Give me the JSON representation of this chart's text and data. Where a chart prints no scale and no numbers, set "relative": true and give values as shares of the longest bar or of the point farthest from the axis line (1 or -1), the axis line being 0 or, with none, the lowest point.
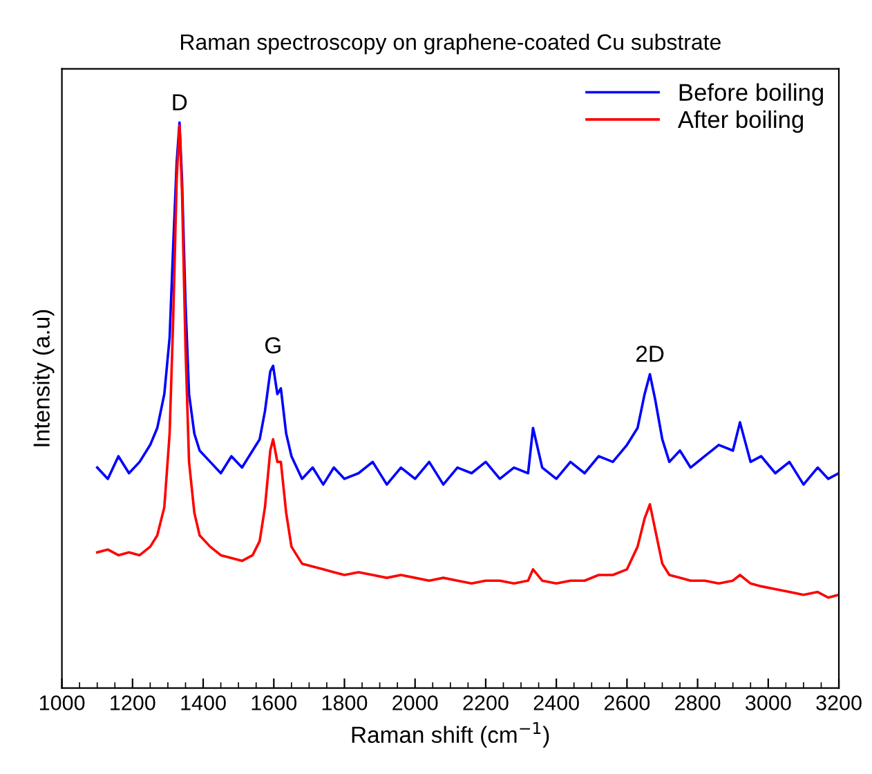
{
  "chart_data": {
    "type": "line",
    "title": "Raman spectroscopy on graphene-coated Cu substrate",
    "xlabel": "Raman shift (cm$^{−1}$)",
    "ylabel": "Intensity (a.u)",
    "relative": true,
    "x": [
      1100,
      1130,
      1160,
      1190,
      1220,
      1250,
      1270,
      1290,
      1305,
      1315,
      1325,
      1333,
      1340,
      1350,
      1360,
      1375,
      1390,
      1420,
      1450,
      1480,
      1510,
      1540,
      1560,
      1575,
      1590,
      1598,
      1610,
      1620,
      1635,
      1650,
      1680,
      1710,
      1740,
      1770,
      1800,
      1840,
      1880,
      1920,
      1960,
      2000,
      2040,
      2080,
      2120,
      2160,
      2200,
      2240,
      2280,
      2320,
      2334,
      2360,
      2400,
      2440,
      2480,
      2520,
      2560,
      2600,
      2630,
      2650,
      2665,
      2680,
      2700,
      2720,
      2750,
      2780,
      2820,
      2860,
      2900,
      2920,
      2950,
      2980,
      3020,
      3060,
      3100,
      3140,
      3170,
      3200
    ],
    "xlim": [
      1000,
      3200
    ],
    "xticks": [
      1000,
      1200,
      1400,
      1600,
      1800,
      2000,
      2200,
      2400,
      2600,
      2800,
      3000,
      3200
    ],
    "series": [
      {
        "name": "Before boiling",
        "color": "#0000ff",
        "values": [
          0.39,
          0.37,
          0.41,
          0.38,
          0.4,
          0.43,
          0.46,
          0.52,
          0.62,
          0.78,
          0.93,
          1.0,
          0.9,
          0.68,
          0.52,
          0.45,
          0.42,
          0.4,
          0.38,
          0.41,
          0.39,
          0.42,
          0.44,
          0.49,
          0.56,
          0.57,
          0.52,
          0.53,
          0.45,
          0.41,
          0.37,
          0.39,
          0.36,
          0.39,
          0.37,
          0.38,
          0.4,
          0.36,
          0.39,
          0.37,
          0.4,
          0.36,
          0.39,
          0.38,
          0.4,
          0.37,
          0.39,
          0.38,
          0.46,
          0.39,
          0.37,
          0.4,
          0.38,
          0.41,
          0.4,
          0.43,
          0.46,
          0.52,
          0.555,
          0.51,
          0.44,
          0.4,
          0.42,
          0.39,
          0.41,
          0.43,
          0.42,
          0.47,
          0.4,
          0.41,
          0.38,
          0.4,
          0.36,
          0.39,
          0.37,
          0.38
        ]
      },
      {
        "name": "After boiling",
        "color": "#ff0000",
        "values": [
          0.24,
          0.245,
          0.235,
          0.24,
          0.235,
          0.25,
          0.27,
          0.32,
          0.45,
          0.65,
          0.9,
          0.995,
          0.88,
          0.6,
          0.4,
          0.31,
          0.27,
          0.25,
          0.235,
          0.23,
          0.225,
          0.235,
          0.26,
          0.32,
          0.42,
          0.44,
          0.4,
          0.4,
          0.31,
          0.25,
          0.22,
          0.215,
          0.21,
          0.205,
          0.2,
          0.205,
          0.2,
          0.195,
          0.2,
          0.195,
          0.19,
          0.195,
          0.19,
          0.185,
          0.19,
          0.19,
          0.185,
          0.19,
          0.21,
          0.19,
          0.185,
          0.19,
          0.19,
          0.2,
          0.2,
          0.21,
          0.25,
          0.3,
          0.325,
          0.28,
          0.22,
          0.2,
          0.195,
          0.19,
          0.19,
          0.185,
          0.19,
          0.2,
          0.185,
          0.18,
          0.175,
          0.17,
          0.165,
          0.17,
          0.16,
          0.165
        ]
      }
    ],
    "annotations": [
      {
        "text": "D",
        "x": 1333,
        "y": 1.0
      },
      {
        "text": "G",
        "x": 1598,
        "y": 0.57
      },
      {
        "text": "2D",
        "x": 2665,
        "y": 0.555
      }
    ],
    "legend": "top right",
    "line_style": "solid",
    "marker": "none",
    "grid": false
  }
}
